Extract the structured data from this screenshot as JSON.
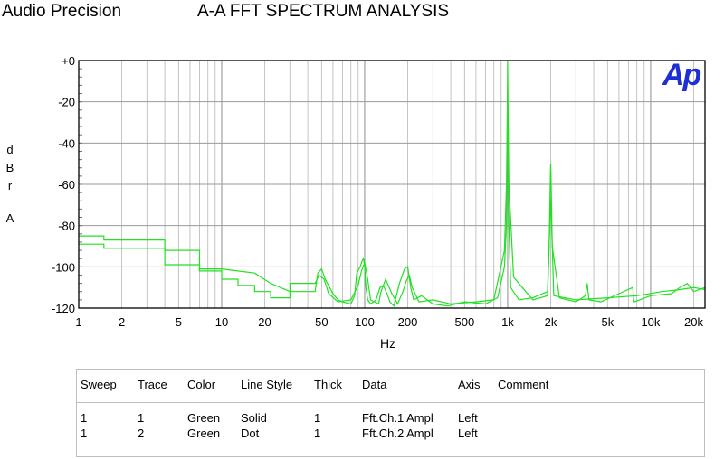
{
  "header": {
    "brand": "Audio Precision",
    "title": "A-A FFT SPECTRUM ANALYSIS",
    "logo_text": "Ap"
  },
  "chart_data": {
    "type": "line",
    "title": "A-A FFT SPECTRUM ANALYSIS",
    "xlabel": "Hz",
    "ylabel": [
      "d",
      "B",
      "r",
      "",
      "A"
    ],
    "x_scale": "log",
    "xlim": [
      1,
      24000
    ],
    "ylim": [
      -120,
      0
    ],
    "grid": true,
    "x_ticks": [
      {
        "v": 1,
        "label": "1"
      },
      {
        "v": 2,
        "label": "2"
      },
      {
        "v": 5,
        "label": "5"
      },
      {
        "v": 10,
        "label": "10"
      },
      {
        "v": 20,
        "label": "20"
      },
      {
        "v": 50,
        "label": "50"
      },
      {
        "v": 100,
        "label": "100"
      },
      {
        "v": 200,
        "label": "200"
      },
      {
        "v": 500,
        "label": "500"
      },
      {
        "v": 1000,
        "label": "1k"
      },
      {
        "v": 2000,
        "label": "2k"
      },
      {
        "v": 5000,
        "label": "5k"
      },
      {
        "v": 10000,
        "label": "10k"
      },
      {
        "v": 20000,
        "label": "20k"
      }
    ],
    "y_ticks": [
      {
        "v": 0,
        "label": "+0"
      },
      {
        "v": -20,
        "label": "-20"
      },
      {
        "v": -40,
        "label": "-40"
      },
      {
        "v": -60,
        "label": "-60"
      },
      {
        "v": -80,
        "label": "-80"
      },
      {
        "v": -100,
        "label": "-100"
      },
      {
        "v": -120,
        "label": "-120"
      }
    ],
    "series_color": "#22e022",
    "series": [
      {
        "name": "Fft.Ch.1 Ampl",
        "x": [
          1,
          1.5,
          1.5,
          4,
          4,
          7,
          7,
          10,
          10,
          13,
          13,
          17,
          17,
          22,
          22,
          30,
          30,
          45,
          47,
          50,
          53,
          60,
          65,
          70,
          80,
          85,
          88,
          93,
          96,
          98,
          100,
          102,
          105,
          110,
          120,
          128,
          135,
          145,
          150,
          160,
          175,
          190,
          200,
          210,
          220,
          250,
          300,
          380,
          500,
          700,
          850,
          950,
          980,
          990,
          1000,
          1010,
          1020,
          1050,
          1200,
          1500,
          1900,
          1950,
          1990,
          2000,
          2010,
          2050,
          2300,
          3000,
          3500,
          3600,
          3700,
          4500,
          6000,
          7500,
          7600,
          7700,
          10000,
          14000,
          16000,
          18000,
          20000,
          24000
        ],
        "y": [
          -85,
          -85,
          -87,
          -87,
          -92,
          -92,
          -101,
          -101,
          -101,
          -102,
          -102,
          -103,
          -103,
          -108,
          -108,
          -112,
          -112,
          -112,
          -103,
          -101,
          -106,
          -113,
          -116,
          -117,
          -118,
          -114,
          -103,
          -100,
          -97,
          -96,
          -100,
          -110,
          -116,
          -118,
          -116,
          -110,
          -109,
          -114,
          -117,
          -119,
          -108,
          -101,
          -100,
          -110,
          -116,
          -114,
          -118,
          -119,
          -117,
          -118,
          -115,
          -100,
          -80,
          -40,
          0,
          -40,
          -80,
          -110,
          -116,
          -115,
          -112,
          -90,
          -55,
          -50,
          -55,
          -90,
          -115,
          -117,
          -114,
          -108,
          -116,
          -117,
          -113,
          -110,
          -116,
          -117,
          -114,
          -113,
          -110,
          -108,
          -112,
          -110
        ]
      },
      {
        "name": "Fft.Ch.2 Ampl",
        "x": [
          1,
          1.5,
          1.5,
          4,
          4,
          7,
          7,
          10,
          10,
          13,
          13,
          17,
          17,
          22,
          22,
          30,
          30,
          45,
          48,
          52,
          56,
          65,
          80,
          90,
          95,
          100,
          105,
          110,
          125,
          130,
          140,
          155,
          170,
          185,
          195,
          205,
          215,
          240,
          300,
          400,
          600,
          800,
          950,
          980,
          1000,
          1020,
          1100,
          1500,
          1900,
          1960,
          2000,
          2040,
          2100,
          3000,
          5000,
          8000,
          12000,
          16000,
          20000,
          24000
        ],
        "y": [
          -89,
          -89,
          -91,
          -91,
          -99,
          -99,
          -102,
          -102,
          -106,
          -106,
          -109,
          -109,
          -112,
          -112,
          -115,
          -115,
          -108,
          -108,
          -104,
          -106,
          -113,
          -117,
          -116,
          -109,
          -102,
          -98,
          -106,
          -116,
          -118,
          -112,
          -106,
          -113,
          -118,
          -112,
          -107,
          -104,
          -110,
          -117,
          -116,
          -118,
          -117,
          -116,
          -92,
          -60,
          -14,
          -60,
          -105,
          -116,
          -114,
          -85,
          -67,
          -85,
          -114,
          -116,
          -115,
          -114,
          -112,
          -111,
          -110,
          -111
        ]
      }
    ]
  },
  "legend": {
    "columns": [
      "Sweep",
      "Trace",
      "Color",
      "Line Style",
      "Thick",
      "Data",
      "Axis",
      "Comment"
    ],
    "rows": [
      [
        "1",
        "1",
        "Green",
        "Solid",
        "1",
        "Fft.Ch.1 Ampl",
        "Left",
        ""
      ],
      [
        "1",
        "2",
        "Green",
        "Dot",
        "1",
        "Fft.Ch.2 Ampl",
        "Left",
        ""
      ]
    ]
  }
}
